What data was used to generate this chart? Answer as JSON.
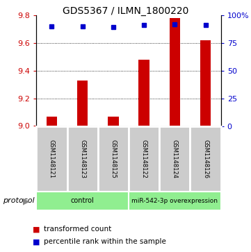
{
  "title": "GDS5367 / ILMN_1800220",
  "samples": [
    "GSM1148121",
    "GSM1148123",
    "GSM1148125",
    "GSM1148122",
    "GSM1148124",
    "GSM1148126"
  ],
  "transformed_counts": [
    9.07,
    9.33,
    9.07,
    9.48,
    9.78,
    9.62
  ],
  "percentile_ranks": [
    90,
    90,
    89,
    91,
    92,
    91
  ],
  "ylim_left": [
    9.0,
    9.8
  ],
  "ylim_right": [
    0,
    100
  ],
  "left_ticks": [
    9.0,
    9.2,
    9.4,
    9.6,
    9.8
  ],
  "right_ticks": [
    0,
    25,
    50,
    75,
    100
  ],
  "right_tick_labels": [
    "0",
    "25",
    "50",
    "75",
    "100%"
  ],
  "bar_color": "#cc0000",
  "dot_color": "#0000cc",
  "protocol_groups": [
    {
      "label": "control",
      "span": [
        0,
        3
      ],
      "color": "#90ee90"
    },
    {
      "label": "miR-542-3p overexpression",
      "span": [
        3,
        6
      ],
      "color": "#90ee90"
    }
  ],
  "legend_items": [
    {
      "label": "transformed count",
      "color": "#cc0000"
    },
    {
      "label": "percentile rank within the sample",
      "color": "#0000cc"
    }
  ],
  "bg_color": "#ffffff",
  "sample_area_color": "#cccccc",
  "grid_color": "#000000",
  "title_fontsize": 10,
  "tick_fontsize": 8,
  "bar_width": 0.35
}
